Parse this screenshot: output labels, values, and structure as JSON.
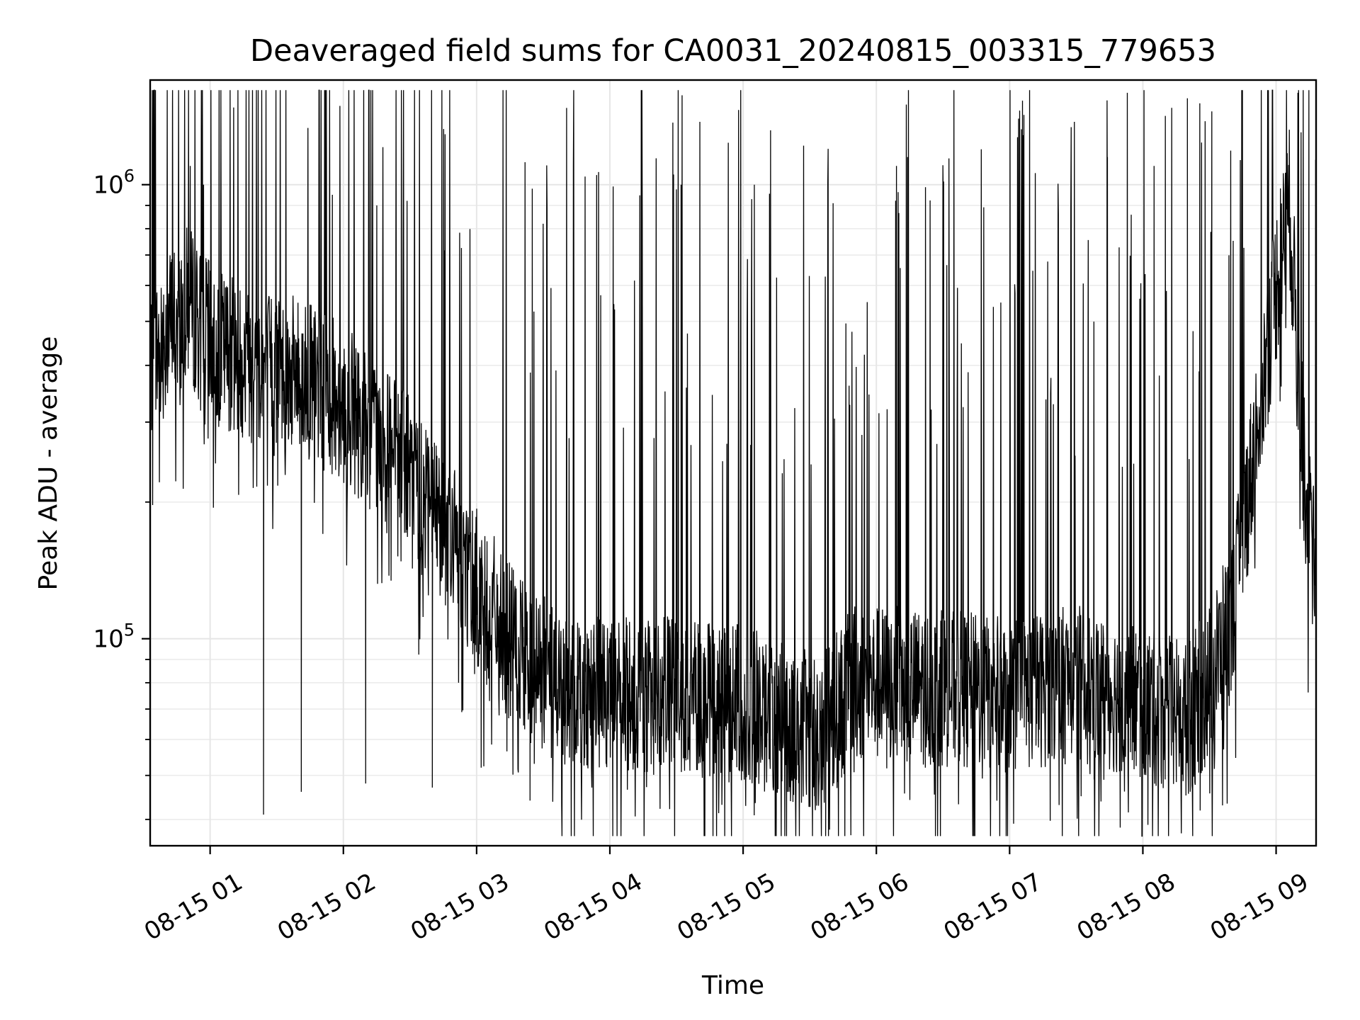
{
  "chart_data": {
    "type": "line",
    "title": "Deaveraged field sums for CA0031_20240815_003315_779653",
    "xlabel": "Time",
    "ylabel": "Peak ADU - average",
    "yscale": "log",
    "ylim": [
      35000,
      1700000
    ],
    "xlim": [
      "2024-08-15 00:33",
      "2024-08-15 09:18"
    ],
    "grid": true,
    "line_color": "#000000",
    "x_ticks": [
      "08-15 01",
      "08-15 02",
      "08-15 03",
      "08-15 04",
      "08-15 05",
      "08-15 06",
      "08-15 07",
      "08-15 08",
      "08-15 09"
    ],
    "y_ticks": [
      {
        "base": "10",
        "exp": "5",
        "value": 100000
      },
      {
        "base": "10",
        "exp": "6",
        "value": 1000000
      }
    ],
    "series": [
      {
        "baseline": [
          [
            "2024-08-15 00:33",
            400000
          ],
          [
            "2024-08-15 00:43",
            500000
          ],
          [
            "2024-08-15 00:50",
            550000
          ],
          [
            "2024-08-15 01:00",
            450000
          ],
          [
            "2024-08-15 01:20",
            400000
          ],
          [
            "2024-08-15 01:40",
            380000
          ],
          [
            "2024-08-15 02:00",
            330000
          ],
          [
            "2024-08-15 02:20",
            260000
          ],
          [
            "2024-08-15 02:40",
            200000
          ],
          [
            "2024-08-15 03:00",
            130000
          ],
          [
            "2024-08-15 03:20",
            90000
          ],
          [
            "2024-08-15 03:40",
            78000
          ],
          [
            "2024-08-15 04:00",
            75000
          ],
          [
            "2024-08-15 04:30",
            75000
          ],
          [
            "2024-08-15 05:00",
            72000
          ],
          [
            "2024-08-15 05:20",
            65000
          ],
          [
            "2024-08-15 05:35",
            62000
          ],
          [
            "2024-08-15 05:50",
            80000
          ],
          [
            "2024-08-15 06:30",
            78000
          ],
          [
            "2024-08-15 07:00",
            75000
          ],
          [
            "2024-08-15 07:30",
            80000
          ],
          [
            "2024-08-15 08:00",
            72000
          ],
          [
            "2024-08-15 08:20",
            66000
          ],
          [
            "2024-08-15 08:30",
            80000
          ],
          [
            "2024-08-15 08:40",
            110000
          ],
          [
            "2024-08-15 08:50",
            260000
          ],
          [
            "2024-08-15 09:00",
            600000
          ],
          [
            "2024-08-15 09:06",
            900000
          ],
          [
            "2024-08-15 09:10",
            400000
          ],
          [
            "2024-08-15 09:13",
            220000
          ],
          [
            "2024-08-15 09:18",
            130000
          ]
        ],
        "peaks": [
          [
            "2024-08-15 00:43",
            1500000
          ],
          [
            "2024-08-15 00:51",
            1100000
          ],
          [
            "2024-08-15 00:57",
            1000000
          ],
          [
            "2024-08-15 01:55",
            950000
          ],
          [
            "2024-08-15 02:15",
            900000
          ],
          [
            "2024-08-15 03:25",
            980000
          ],
          [
            "2024-08-15 03:54",
            1050000
          ],
          [
            "2024-08-15 04:32",
            1000000
          ],
          [
            "2024-08-15 05:05",
            1000000
          ],
          [
            "2024-08-15 06:09",
            1100000
          ],
          [
            "2024-08-15 06:14",
            1150000
          ],
          [
            "2024-08-15 06:30",
            1000000
          ],
          [
            "2024-08-15 07:44",
            1150000
          ],
          [
            "2024-08-15 08:05",
            1100000
          ],
          [
            "2024-08-15 08:20",
            1550000
          ],
          [
            "2024-08-15 08:31",
            1450000
          ],
          [
            "2024-08-15 09:04",
            950000
          ]
        ],
        "troughs": [
          [
            "2024-08-15 01:24",
            41000
          ],
          [
            "2024-08-15 01:41",
            46000
          ],
          [
            "2024-08-15 02:10",
            48000
          ],
          [
            "2024-08-15 02:40",
            47000
          ],
          [
            "2024-08-15 03:02",
            52000
          ],
          [
            "2024-08-15 03:24",
            44000
          ],
          [
            "2024-08-15 05:20",
            46000
          ],
          [
            "2024-08-15 05:35",
            48000
          ],
          [
            "2024-08-15 06:22",
            52000
          ],
          [
            "2024-08-15 07:38",
            49000
          ],
          [
            "2024-08-15 08:10",
            49000
          ]
        ]
      }
    ]
  }
}
